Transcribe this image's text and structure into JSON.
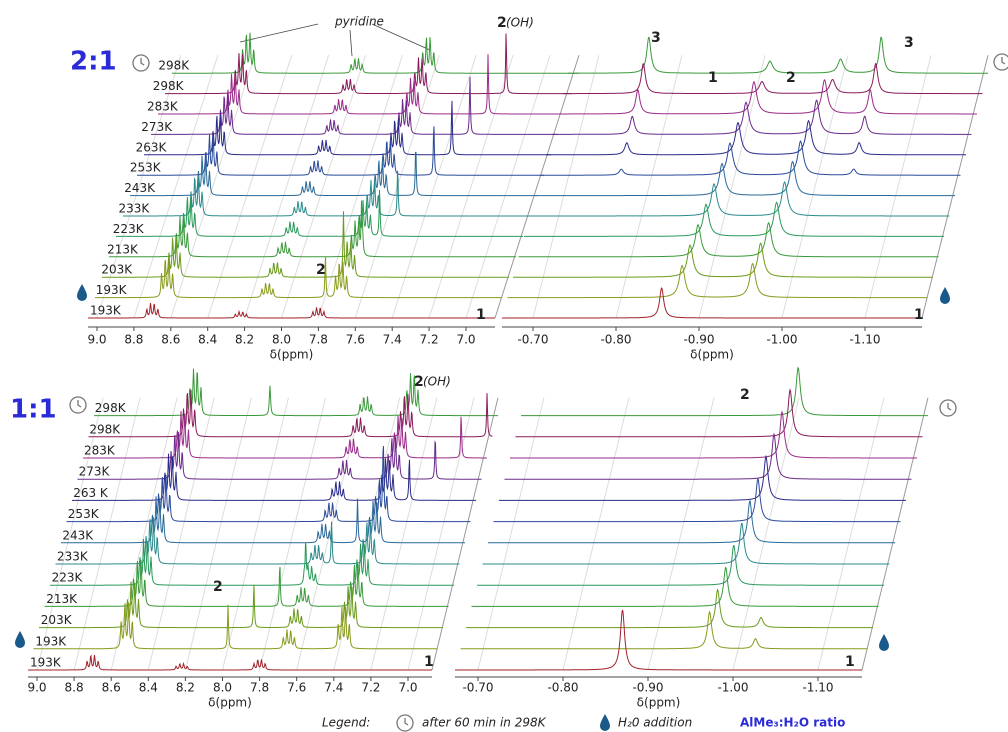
{
  "panels": [
    {
      "ratio": "2:1",
      "temperatures": [
        "298K",
        "298K",
        "283K",
        "273K",
        "263K",
        "253K",
        "243K",
        "233K",
        "223K",
        "213K",
        "203K",
        "193K",
        "193K"
      ],
      "left_axis": {
        "ticks": [
          "9.0",
          "8.8",
          "8.6",
          "8.4",
          "8.2",
          "8.0",
          "7.8",
          "7.6",
          "7.4",
          "7.2",
          "7.0"
        ],
        "label": "δ(ppm)"
      },
      "right_axis": {
        "ticks": [
          "-0.70",
          "-0.80",
          "-0.90",
          "-1.00",
          "-1.10"
        ],
        "label": "δ(ppm)"
      },
      "annotations": [
        "pyridine",
        "2",
        "(OH)",
        "2",
        "1",
        "3",
        "3",
        "1",
        "2",
        "1"
      ]
    },
    {
      "ratio": "1:1",
      "temperatures": [
        "298K",
        "298K",
        "283K",
        "273K",
        "263 K",
        "253K",
        "243K",
        "233K",
        "223K",
        "213K",
        "203K",
        "193K",
        "193K"
      ],
      "left_axis": {
        "ticks": [
          "9.0",
          "8.8",
          "8.6",
          "8.4",
          "8.2",
          "8.0",
          "7.8",
          "7.6",
          "7.4",
          "7.2",
          "7.0"
        ],
        "label": "δ(ppm)"
      },
      "right_axis": {
        "ticks": [
          "-0.70",
          "-0.80",
          "-0.90",
          "-1.00",
          "-1.10"
        ],
        "label": "δ(ppm)"
      },
      "annotations": [
        "2",
        "(OH)",
        "2",
        "1",
        "2",
        "1"
      ]
    }
  ],
  "trace_colors": [
    "#3a9a3a",
    "#8a1a5a",
    "#9a2a8a",
    "#6a2a8a",
    "#2a2a8a",
    "#2a4a9a",
    "#2a6a9a",
    "#2a8a8a",
    "#2a9a5a",
    "#3a9a3a",
    "#6a9a1a",
    "#8a9a1a",
    "#a0202a"
  ],
  "legend": {
    "title": "Legend:",
    "clock": "after 60 min in 298K",
    "water": "H₂0 addition",
    "ratio": "AlMe₃:H₂O ratio"
  }
}
